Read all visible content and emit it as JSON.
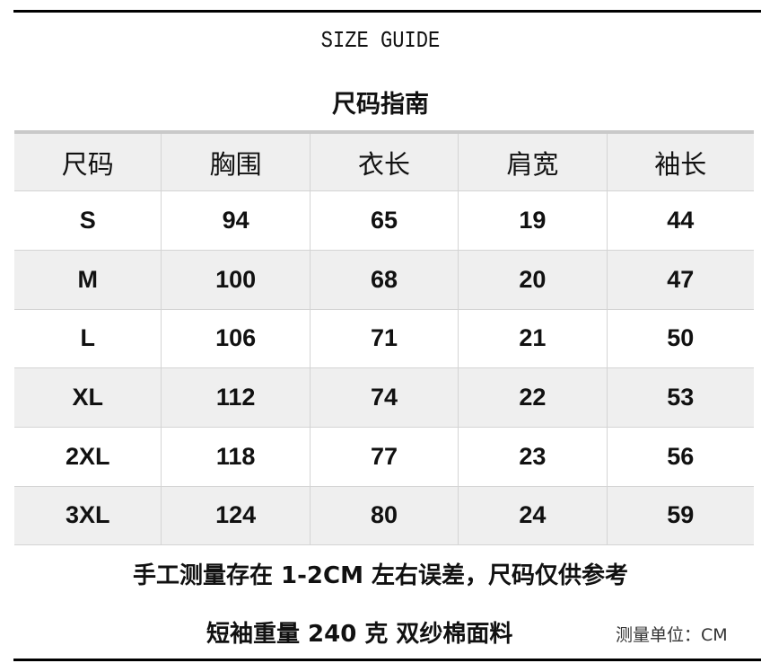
{
  "title_en": "SIZE GUIDE",
  "title_cn": "尺码指南",
  "headers": [
    "尺码",
    "胸围",
    "衣长",
    "肩宽",
    "袖长"
  ],
  "rows": [
    [
      "S",
      "94",
      "65",
      "19",
      "44"
    ],
    [
      "M",
      "100",
      "68",
      "20",
      "47"
    ],
    [
      "L",
      "106",
      "71",
      "21",
      "50"
    ],
    [
      "XL",
      "112",
      "74",
      "22",
      "53"
    ],
    [
      "2XL",
      "118",
      "77",
      "23",
      "56"
    ],
    [
      "3XL",
      "124",
      "80",
      "24",
      "59"
    ]
  ],
  "note_error": "手工测量存在 1-2CM 左右误差，尺码仅供参考",
  "note_fabric": "短袖重量 240 克  双纱棉面料",
  "note_unit": "测量单位：CM"
}
